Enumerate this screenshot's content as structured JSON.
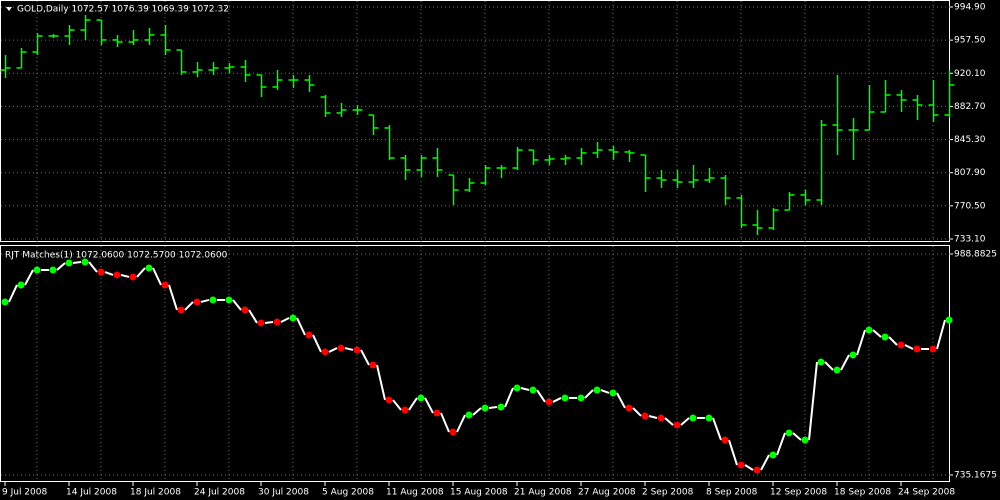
{
  "chart_data": [
    {
      "type": "ohlc",
      "header": "GOLD,Daily  1072.57 1076.39 1069.39 1072.32",
      "color": "#00ff00",
      "categories": [
        "9 Jul 2008",
        null,
        null,
        null,
        "14 Jul 2008",
        null,
        null,
        null,
        "18 Jul 2008",
        null,
        null,
        null,
        "24 Jul 2008",
        null,
        null,
        null,
        "30 Jul 2008",
        null,
        null,
        null,
        "5 Aug 2008",
        null,
        null,
        null,
        "11 Aug 2008",
        null,
        null,
        null,
        "15 Aug 2008",
        null,
        null,
        null,
        "21 Aug 2008",
        null,
        null,
        null,
        "27 Aug 2008",
        null,
        null,
        null,
        "2 Sep 2008",
        null,
        null,
        null,
        "8 Sep 2008",
        null,
        null,
        null,
        "12 Sep 2008",
        null,
        null,
        null,
        "18 Sep 2008",
        null,
        null,
        null,
        "24 Sep 2008",
        null,
        null,
        null
      ],
      "open": [
        923.8,
        926.1,
        944.1,
        962.2,
        962.2,
        968.9,
        980.2,
        957.7,
        955.4,
        957.7,
        963.3,
        946.4,
        921.6,
        923.8,
        926.1,
        927.2,
        918.2,
        904.6,
        912.5,
        912.5,
        893.3,
        875.3,
        878.7,
        873.0,
        858.4,
        824.5,
        811.0,
        824.5,
        805.3,
        788.4,
        796.3,
        813.2,
        813.2,
        833.5,
        822.3,
        823.4,
        824.5,
        830.2,
        833.5,
        831.3,
        827.9,
        801.9,
        799.7,
        797.4,
        799.7,
        801.9,
        779.4,
        748.9,
        745.5,
        765.8,
        782.8,
        777.1,
        861.7,
        856.1,
        856.1,
        876.4,
        895.6,
        890.0,
        884.3,
        873.0
      ],
      "high": [
        940.7,
        948.6,
        965.6,
        964.4,
        974.6,
        985.9,
        980.2,
        963.3,
        968.9,
        971.2,
        974.6,
        946.4,
        932.8,
        932.8,
        931.7,
        935.1,
        918.2,
        923.8,
        918.2,
        918.2,
        895.6,
        886.6,
        884.3,
        873.0,
        861.7,
        827.9,
        827.9,
        835.8,
        805.3,
        801.9,
        816.6,
        816.6,
        836.9,
        833.5,
        827.9,
        827.9,
        835.8,
        842.6,
        838.1,
        833.5,
        827.9,
        811.0,
        811.0,
        816.6,
        813.2,
        805.3,
        782.8,
        765.8,
        768.1,
        786.1,
        788.4,
        867.4,
        918.2,
        869.6,
        906.9,
        912.5,
        901.2,
        895.6,
        912.5,
        923.8
      ],
      "low": [
        914.8,
        926.1,
        940.7,
        959.9,
        952.0,
        957.7,
        952.0,
        949.8,
        952.0,
        952.0,
        940.7,
        918.2,
        915.9,
        918.2,
        920.4,
        910.3,
        893.3,
        901.2,
        903.5,
        899.0,
        870.8,
        870.8,
        873.0,
        850.5,
        822.3,
        799.7,
        803.1,
        803.1,
        771.5,
        786.1,
        794.0,
        801.9,
        811.0,
        816.6,
        816.6,
        816.6,
        816.6,
        824.5,
        822.3,
        820.0,
        786.1,
        790.7,
        790.7,
        790.7,
        796.3,
        771.5,
        745.5,
        737.6,
        743.3,
        765.8,
        771.5,
        771.5,
        827.9,
        822.3,
        856.1,
        876.4,
        876.4,
        867.4,
        865.1,
        869.6
      ],
      "close": [
        926.1,
        944.1,
        962.2,
        962.2,
        968.9,
        980.2,
        957.7,
        955.4,
        957.7,
        963.3,
        946.4,
        921.6,
        923.8,
        926.1,
        927.2,
        918.2,
        904.6,
        912.5,
        912.5,
        906.9,
        875.3,
        878.7,
        878.7,
        858.4,
        824.5,
        811.0,
        824.5,
        811.0,
        788.4,
        796.3,
        813.2,
        813.2,
        833.5,
        822.3,
        823.4,
        824.5,
        830.2,
        833.5,
        831.3,
        830.2,
        801.9,
        799.7,
        797.4,
        799.7,
        801.9,
        779.4,
        748.9,
        745.5,
        765.8,
        782.8,
        777.1,
        861.7,
        856.1,
        856.1,
        876.4,
        895.6,
        890.0,
        884.3,
        873.0,
        906.9
      ],
      "ylim": [
        729.7,
        1002.8
      ],
      "yticks": [
        {
          "value": 994.9,
          "label": "994.90"
        },
        {
          "value": 957.5,
          "label": "957.50"
        },
        {
          "value": 920.1,
          "label": "920.10"
        },
        {
          "value": 882.7,
          "label": "882.70"
        },
        {
          "value": 845.3,
          "label": "845.30"
        },
        {
          "value": 807.9,
          "label": "807.90"
        },
        {
          "value": 770.5,
          "label": "770.50"
        },
        {
          "value": 733.1,
          "label": "733.10"
        }
      ],
      "grid": true
    },
    {
      "type": "indicator",
      "header": "RJT Matches(1) 1072.0600 1072.5700 1072.0600",
      "line_color": "#ffffff",
      "values": [
        933.8,
        953.3,
        970.5,
        970.5,
        978.5,
        979.7,
        968.2,
        964.8,
        962.5,
        972.8,
        953.3,
        924.6,
        933.8,
        936.1,
        936.1,
        924.6,
        909.7,
        910.8,
        915.4,
        895.9,
        876.4,
        880.9,
        878.7,
        861.4,
        821.3,
        809.8,
        823.6,
        806.3,
        784.5,
        804.0,
        812.1,
        813.2,
        835.0,
        832.7,
        819.0,
        823.6,
        823.6,
        832.7,
        829.3,
        812.1,
        802.9,
        800.6,
        792.6,
        800.6,
        800.6,
        775.3,
        746.6,
        740.9,
        758.1,
        783.4,
        775.3,
        864.9,
        855.7,
        872.9,
        901.6,
        893.6,
        884.4,
        879.8,
        879.8,
        913.1
      ],
      "colors": [
        "#00ff00",
        "#00ff00",
        "#00ff00",
        "#00ff00",
        "#00ff00",
        "#00ff00",
        "#ff0000",
        "#ff0000",
        "#ff0000",
        "#00ff00",
        "#ff0000",
        "#ff0000",
        "#ff0000",
        "#00ff00",
        "#00ff00",
        "#ff0000",
        "#ff0000",
        "#ff0000",
        "#00ff00",
        "#ff0000",
        "#ff0000",
        "#ff0000",
        "#ff0000",
        "#ff0000",
        "#ff0000",
        "#ff0000",
        "#00ff00",
        "#ff0000",
        "#ff0000",
        "#00ff00",
        "#00ff00",
        "#00ff00",
        "#00ff00",
        "#00ff00",
        "#ff0000",
        "#00ff00",
        "#00ff00",
        "#00ff00",
        "#00ff00",
        "#ff0000",
        "#ff0000",
        "#ff0000",
        "#ff0000",
        "#00ff00",
        "#00ff00",
        "#ff0000",
        "#ff0000",
        "#ff0000",
        "#00ff00",
        "#00ff00",
        "#00ff00",
        "#00ff00",
        "#00ff00",
        "#00ff00",
        "#00ff00",
        "#00ff00",
        "#ff0000",
        "#ff0000",
        "#ff0000",
        "#00ff00"
      ],
      "ylim": [
        727.1,
        999.2
      ],
      "yticks": [
        988.8825,
        735.1675
      ],
      "grid": true
    }
  ]
}
